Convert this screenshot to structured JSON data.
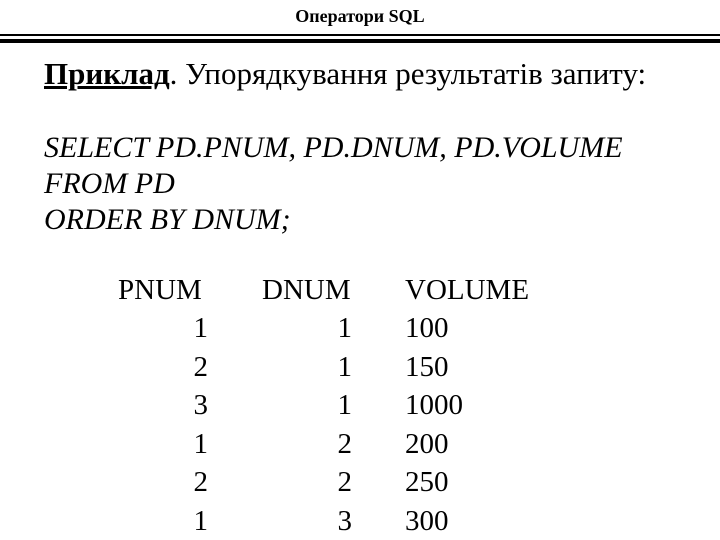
{
  "header": {
    "title": "Оператори SQL"
  },
  "heading": {
    "label": "Приклад",
    "text": ". Упорядкування результатів запиту:"
  },
  "sql": [
    "SELECT PD.PNUM, PD.DNUM, PD.VOLUME",
    "FROM PD",
    "ORDER BY DNUM;"
  ],
  "table": {
    "columns": [
      "PNUM",
      "DNUM",
      "VOLUME"
    ],
    "rows": [
      [
        "1",
        "1",
        "100"
      ],
      [
        "2",
        "1",
        "150"
      ],
      [
        "3",
        "1",
        "1000"
      ],
      [
        "1",
        "2",
        "200"
      ],
      [
        "2",
        "2",
        "250"
      ],
      [
        "1",
        "3",
        "300"
      ]
    ]
  }
}
